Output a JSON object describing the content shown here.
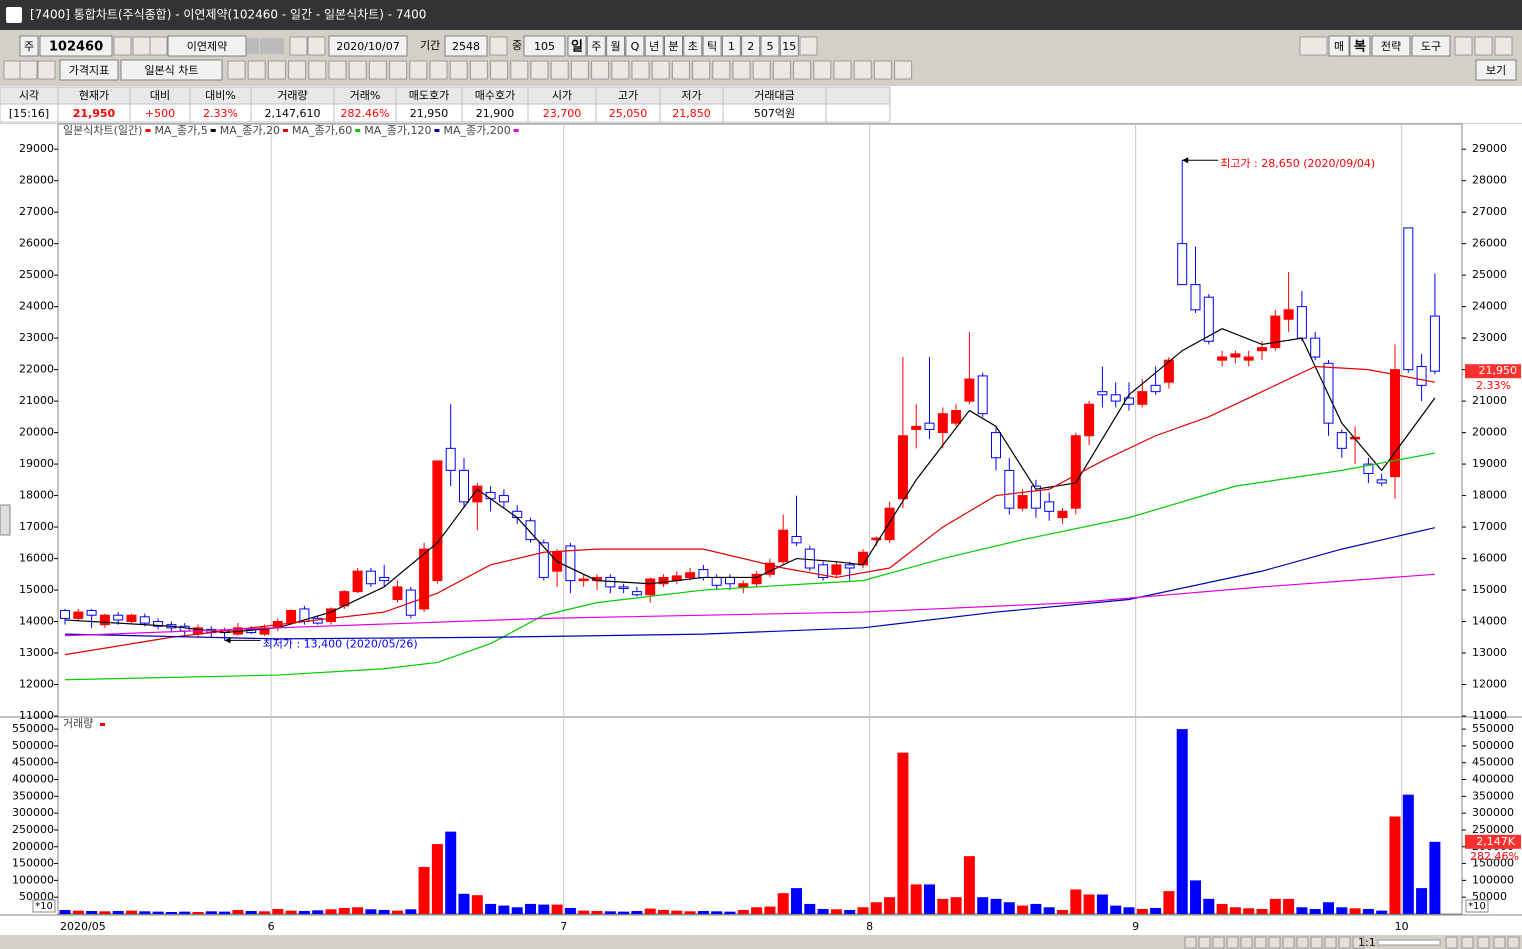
{
  "window": {
    "title": "[7400] 통합차트(주식종합) - 이연제약(102460 - 일간 - 일본식차트) - 7400"
  },
  "toolbar": {
    "market": "주",
    "code": "102460",
    "name": "이연제약",
    "date": "2020/10/07",
    "period_label": "기간",
    "period": "2548",
    "count_label": "중",
    "count": "105",
    "periods": [
      "일",
      "주",
      "월",
      "Q",
      "년",
      "분",
      "초",
      "틱",
      "1",
      "2",
      "5",
      "15"
    ],
    "indicator": "가격지표",
    "chart_kind": "일본식 차트",
    "right_buttons": [
      "매",
      "복",
      "전략",
      "도구"
    ],
    "view": "보기"
  },
  "quote": {
    "headers": [
      "시각",
      "현재가",
      "대비",
      "대비%",
      "거래량",
      "거래%",
      "매도호가",
      "매수호가",
      "시가",
      "고가",
      "저가",
      "거래대금"
    ],
    "values": [
      "[15:16]",
      "21,950",
      "+500",
      "2.33%",
      "2,147,610",
      "282.46%",
      "21,950",
      "21,900",
      "23,700",
      "25,050",
      "21,850",
      "507억원"
    ]
  },
  "chart_data": [
    {
      "type": "candlestick",
      "title": "일본식차트(일간)",
      "up_color": "#ff0000",
      "down_color": "#0000ff",
      "open": [
        14350,
        14100,
        14350,
        13900,
        14200,
        14000,
        14150,
        14000,
        13900,
        13850,
        13600,
        13750,
        13700,
        13600,
        13750,
        13600,
        13800,
        13950,
        14400,
        14100,
        14000,
        14500,
        14950,
        15600,
        15400,
        14700,
        15000,
        14400,
        15300,
        19500,
        18800,
        17800,
        18100,
        18000,
        17500,
        17200,
        16500,
        15600,
        16400,
        15300,
        15300,
        15400,
        15100,
        14950,
        14850,
        15200,
        15300,
        15400,
        15650,
        15400,
        15400,
        15100,
        15200,
        15500,
        15900,
        16700,
        16300,
        15800,
        15500,
        15800,
        15800,
        16600,
        16600,
        17900,
        20100,
        20300,
        20000,
        20300,
        21000,
        21800,
        20000,
        18800,
        17600,
        18300,
        17800,
        17300,
        17600,
        19900,
        21300,
        21200,
        21100,
        20900,
        21500,
        21600,
        26000,
        24700,
        24300,
        22300,
        22400,
        22300,
        22600,
        22700,
        23600,
        24000,
        23000,
        22200,
        20000,
        19800,
        19000,
        18500,
        18600,
        26500,
        22100,
        23700
      ],
      "high": [
        14400,
        14400,
        14400,
        14250,
        14300,
        14250,
        14250,
        14100,
        14000,
        13950,
        13900,
        13850,
        13800,
        13950,
        13850,
        13900,
        14100,
        14400,
        14500,
        14200,
        14450,
        15000,
        15700,
        15700,
        15800,
        15300,
        15100,
        16500,
        19100,
        20900,
        19200,
        18400,
        18300,
        18200,
        17700,
        17300,
        16600,
        16300,
        16500,
        15500,
        15500,
        15500,
        15200,
        15100,
        15400,
        15500,
        15600,
        15700,
        15800,
        15500,
        15500,
        15300,
        15600,
        16000,
        17400,
        18000,
        16400,
        15900,
        15900,
        15900,
        16300,
        16700,
        17800,
        22400,
        20900,
        22400,
        20800,
        20900,
        23200,
        21900,
        20200,
        19200,
        18200,
        18500,
        18100,
        17600,
        20000,
        21000,
        22100,
        21600,
        21600,
        21700,
        22100,
        22400,
        28650,
        25900,
        24400,
        22600,
        22600,
        22600,
        22900,
        23900,
        25100,
        24500,
        23200,
        22300,
        20100,
        20200,
        19200,
        18700,
        22800,
        26500,
        22500,
        25050
      ],
      "low": [
        13900,
        14000,
        13800,
        13800,
        13900,
        13950,
        13850,
        13750,
        13650,
        13550,
        13500,
        13500,
        13400,
        13550,
        13600,
        13550,
        13700,
        13900,
        13900,
        13900,
        13900,
        14400,
        14900,
        15100,
        15100,
        14600,
        14100,
        14300,
        15200,
        18300,
        17600,
        16900,
        17500,
        17600,
        17100,
        16500,
        15300,
        15100,
        14900,
        15100,
        15000,
        14900,
        14900,
        14800,
        14600,
        15100,
        15200,
        15300,
        15300,
        15000,
        15000,
        14900,
        15100,
        15400,
        15800,
        16400,
        15600,
        15300,
        15400,
        15300,
        15700,
        16400,
        16500,
        17600,
        19500,
        19800,
        19500,
        20200,
        20900,
        20500,
        18800,
        17400,
        17500,
        17300,
        17200,
        17100,
        17400,
        19600,
        20800,
        20800,
        20700,
        20800,
        21200,
        21400,
        24700,
        23800,
        22800,
        22100,
        22200,
        22100,
        22300,
        22600,
        23200,
        22900,
        22300,
        19900,
        19200,
        19000,
        18400,
        18300,
        17900,
        21900,
        21000,
        21850
      ],
      "close": [
        14100,
        14300,
        14200,
        14200,
        14050,
        14200,
        13950,
        13850,
        13800,
        13700,
        13800,
        13650,
        13650,
        13800,
        13650,
        13800,
        14000,
        14350,
        14000,
        13950,
        14400,
        14950,
        15600,
        15200,
        15300,
        15100,
        14200,
        16300,
        19100,
        18800,
        17800,
        18300,
        17900,
        17800,
        17300,
        16600,
        15400,
        16200,
        15300,
        15350,
        15400,
        15100,
        15050,
        14850,
        15350,
        15400,
        15450,
        15550,
        15400,
        15150,
        15200,
        15200,
        15500,
        15850,
        16900,
        16500,
        15700,
        15400,
        15800,
        15700,
        16200,
        16650,
        17600,
        19900,
        20200,
        20100,
        20600,
        20700,
        21700,
        20600,
        19200,
        17600,
        18000,
        17600,
        17500,
        17500,
        19900,
        20900,
        21200,
        21000,
        20900,
        21300,
        21300,
        22300,
        24700,
        23900,
        22900,
        22400,
        22500,
        22400,
        22700,
        23700,
        23900,
        23000,
        22400,
        20300,
        19500,
        19850,
        18700,
        18400,
        22000,
        22000,
        21500,
        21950
      ],
      "series": [
        {
          "name": "MA_종가,5",
          "color": "#000000",
          "x": [
            0,
            4,
            8,
            12,
            16,
            20,
            24,
            28,
            31,
            34,
            37,
            40,
            44,
            48,
            52,
            55,
            58,
            60,
            64,
            68,
            70,
            73,
            76,
            80,
            84,
            87,
            90,
            93,
            96,
            99,
            103
          ],
          "values": [
            14050,
            13950,
            13850,
            13650,
            13800,
            14300,
            15100,
            16500,
            18200,
            17300,
            15900,
            15300,
            15200,
            15400,
            15400,
            16000,
            15900,
            15800,
            18500,
            20700,
            20200,
            18200,
            18400,
            21200,
            22600,
            23300,
            22800,
            23000,
            20300,
            18800,
            21100
          ]
        },
        {
          "name": "MA_종가,20",
          "color": "#e00000",
          "x": [
            0,
            8,
            16,
            24,
            28,
            32,
            36,
            40,
            48,
            54,
            58,
            62,
            66,
            70,
            74,
            78,
            82,
            86,
            90,
            94,
            98,
            103
          ],
          "values": [
            12950,
            13500,
            13900,
            14300,
            14900,
            15800,
            16200,
            16300,
            16300,
            15700,
            15400,
            15700,
            17000,
            18000,
            18200,
            19100,
            19900,
            20500,
            21300,
            22100,
            22000,
            21600
          ]
        },
        {
          "name": "MA_종가,60",
          "color": "#00cc00",
          "x": [
            0,
            16,
            24,
            28,
            32,
            36,
            40,
            48,
            56,
            60,
            66,
            72,
            80,
            88,
            96,
            103
          ],
          "values": [
            12150,
            12300,
            12500,
            12700,
            13300,
            14200,
            14600,
            15000,
            15200,
            15300,
            16000,
            16600,
            17300,
            18300,
            18800,
            19350
          ]
        },
        {
          "name": "MA_종가,120",
          "color": "#0000b0",
          "x": [
            0,
            16,
            32,
            48,
            60,
            70,
            80,
            90,
            96,
            103
          ],
          "values": [
            13600,
            13450,
            13500,
            13600,
            13800,
            14300,
            14700,
            15600,
            16300,
            16980
          ]
        },
        {
          "name": "MA_종가,200",
          "color": "#e000e0",
          "x": [
            0,
            16,
            36,
            60,
            76,
            90,
            103
          ],
          "values": [
            13550,
            13800,
            14100,
            14300,
            14600,
            15100,
            15500
          ]
        }
      ],
      "ylim": [
        11000,
        29800
      ],
      "yticks": [
        11000,
        12000,
        13000,
        14000,
        15000,
        16000,
        17000,
        18000,
        19000,
        20000,
        21000,
        22000,
        23000,
        24000,
        25000,
        26000,
        27000,
        28000,
        29000
      ],
      "xlabels": [
        {
          "index": 0,
          "label": "2020/05"
        },
        {
          "index": 16,
          "label": "6"
        },
        {
          "index": 38,
          "label": "7"
        },
        {
          "index": 61,
          "label": "8"
        },
        {
          "index": 81,
          "label": "9"
        },
        {
          "index": 101,
          "label": "10"
        }
      ],
      "vgrid": true,
      "annotations": [
        {
          "text": "최고가 : 28,650 (2020/09/04)",
          "index": 84,
          "value": 28650,
          "color": "#ff0000"
        },
        {
          "text": "최저가 : 13,400 (2020/05/26)",
          "index": 12,
          "value": 13400,
          "color": "#0000ff"
        }
      ],
      "last_label": "21,950",
      "change_label": "2.33%"
    },
    {
      "type": "bar",
      "title": "거래량",
      "unit": "*10",
      "values": [
        12000,
        10000,
        9000,
        8000,
        9000,
        10000,
        8000,
        7000,
        6000,
        7000,
        6000,
        8000,
        7000,
        12000,
        9000,
        8000,
        15000,
        10000,
        9000,
        11000,
        14000,
        18000,
        20000,
        14000,
        12000,
        10000,
        14000,
        140000,
        208000,
        245000,
        60000,
        56000,
        30000,
        25000,
        20000,
        30000,
        28000,
        28000,
        18000,
        10000,
        9000,
        8000,
        7000,
        9000,
        16000,
        12000,
        10000,
        8000,
        9000,
        8000,
        7000,
        12000,
        20000,
        22000,
        62000,
        77000,
        30000,
        15000,
        14000,
        12000,
        20000,
        35000,
        50000,
        480000,
        88000,
        88000,
        45000,
        50000,
        172000,
        50000,
        45000,
        35000,
        25000,
        30000,
        20000,
        12000,
        73000,
        58000,
        58000,
        25000,
        20000,
        15000,
        18000,
        68000,
        550000,
        100000,
        45000,
        30000,
        20000,
        17000,
        15000,
        45000,
        45000,
        20000,
        15000,
        35000,
        20000,
        17000,
        15000,
        10000,
        290000,
        355000,
        77000,
        214761
      ],
      "ylim": [
        0,
        583000
      ],
      "yticks": [
        50000,
        100000,
        150000,
        200000,
        250000,
        300000,
        350000,
        400000,
        450000,
        500000,
        550000
      ],
      "last_label": "2,147K",
      "ratio_label": "282.46%"
    }
  ],
  "footer": {
    "zoom": "1:1"
  }
}
